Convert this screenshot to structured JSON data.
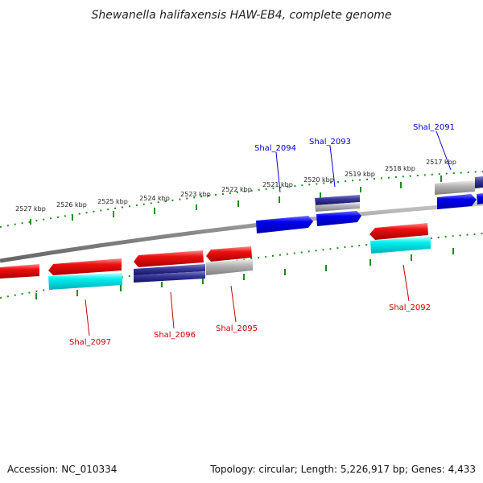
{
  "title": "Shewanella halifaxensis HAW-EB4, complete genome",
  "footer": {
    "accession": "Accession: NC_010334",
    "topology": "Topology: circular; Length: 5,226,917 bp; Genes: 4,433"
  },
  "colors": {
    "forward_cds": "#0000ee",
    "reverse_cds": "#ee0000",
    "rna_gene": "#00e5ee",
    "dark_blue_gene": "#222288",
    "grey_gene": "#aaaaaa",
    "backbone": "#888888",
    "tick": "#1a8f1a",
    "forward_label": "#0000cc",
    "reverse_label": "#cc0000"
  },
  "ticks": [
    {
      "label": "2527 kbp"
    },
    {
      "label": "2526 kbp"
    },
    {
      "label": "2525 kbp"
    },
    {
      "label": "2524 kbp"
    },
    {
      "label": "2523 kbp"
    },
    {
      "label": "2522 kbp"
    },
    {
      "label": "2521 kbp"
    },
    {
      "label": "2520 kbp"
    },
    {
      "label": "2519 kbp"
    },
    {
      "label": "2518 kbp"
    },
    {
      "label": "2517 kbp"
    }
  ],
  "gene_labels": [
    {
      "label": "Shal_2091",
      "strand": "forward"
    },
    {
      "label": "Shal_2093",
      "strand": "forward"
    },
    {
      "label": "Shal_2094",
      "strand": "forward"
    },
    {
      "label": "Shal_2092",
      "strand": "reverse"
    },
    {
      "label": "Shal_2095",
      "strand": "reverse"
    },
    {
      "label": "Shal_2096",
      "strand": "reverse"
    },
    {
      "label": "Shal_2097",
      "strand": "reverse"
    }
  ]
}
